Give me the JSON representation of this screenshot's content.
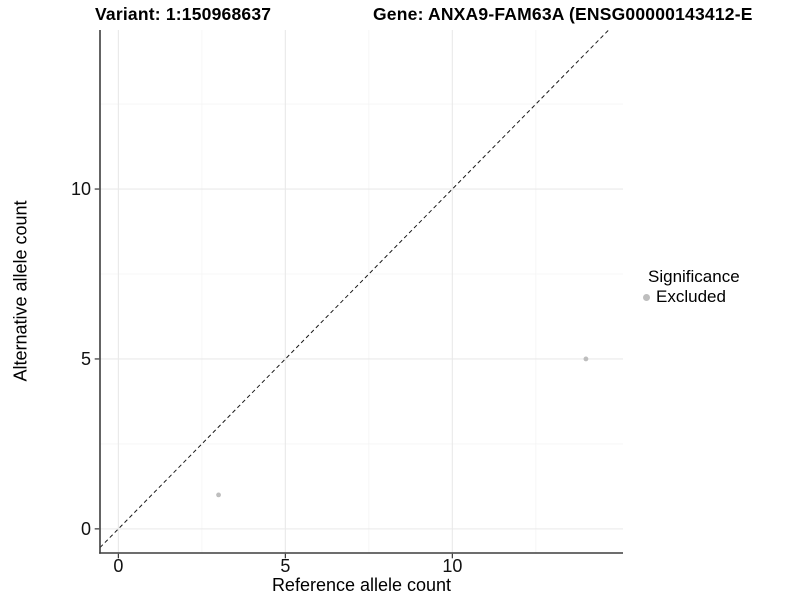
{
  "chart_data": {
    "type": "scatter",
    "titles": {
      "variant": "Variant: 1:150968637",
      "gene": "Gene: ANXA9-FAM63A (ENSG00000143412-E"
    },
    "xlabel": "Reference allele count",
    "ylabel": "Alternative allele count",
    "x_ticks": [
      0,
      5,
      10
    ],
    "y_ticks": [
      0,
      5,
      10
    ],
    "x_minor_ticks": [
      2.5,
      7.5,
      12.5
    ],
    "y_minor_ticks": [
      2.5,
      7.5,
      12.5
    ],
    "xlim": [
      -0.55,
      15.11
    ],
    "ylim": [
      -0.71,
      14.68
    ],
    "grid": true,
    "identity_line": {
      "slope": 1,
      "intercept": 0,
      "style": "dashed",
      "color": "#1a1a1a"
    },
    "series": [
      {
        "name": "Excluded",
        "color": "#bebebe",
        "points": [
          {
            "x": 3,
            "y": 1
          },
          {
            "x": 14,
            "y": 5
          }
        ]
      }
    ],
    "legend": {
      "title": "Significance",
      "position": "right",
      "items": [
        {
          "label": "Excluded",
          "color": "#bebebe"
        }
      ]
    }
  },
  "colors": {
    "background": "#ffffff",
    "grid_major": "#e9e9e9",
    "grid_minor": "#f4f4f4",
    "axis_line": "#3d3d3d",
    "tick_mark": "#333333",
    "tick_label": "#111111",
    "point": "#bebebe"
  }
}
